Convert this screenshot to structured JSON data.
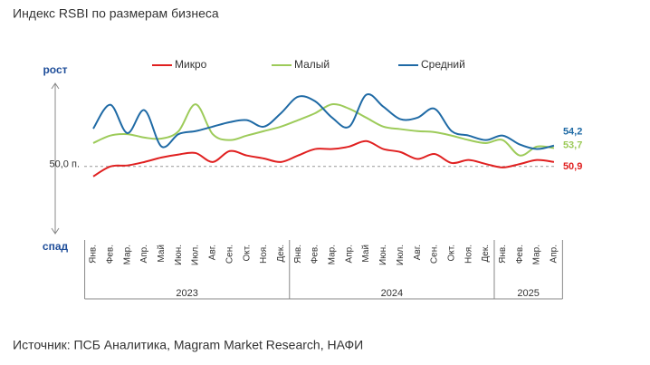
{
  "chart_data": {
    "type": "line",
    "title": "Индекс RSBI по размерам бизнеса",
    "source": "Источник: ПСБ Аналитика, Magram Market Research, НАФИ",
    "y_up_label": "рост",
    "y_down_label": "спад",
    "reference": {
      "value": 50,
      "label": "50,0 п."
    },
    "ylim": [
      36.5,
      66.7
    ],
    "categories": [
      "Янв.",
      "Фев.",
      "Мар.",
      "Апр.",
      "Май",
      "Июн.",
      "Июл.",
      "Авг.",
      "Сен.",
      "Окт.",
      "Ноя.",
      "Дек.",
      "Янв.",
      "Фев.",
      "Мар.",
      "Апр.",
      "Май",
      "Июн.",
      "Июл.",
      "Авг.",
      "Сен.",
      "Окт.",
      "Ноя.",
      "Дек.",
      "Янв.",
      "Фев.",
      "Мар.",
      "Апр."
    ],
    "years": [
      {
        "label": "2023",
        "span": 12
      },
      {
        "label": "2024",
        "span": 12
      },
      {
        "label": "2025",
        "span": 4
      }
    ],
    "series": [
      {
        "name": "Микро",
        "color": "#e02020",
        "values": [
          48.0,
          50.0,
          50.2,
          50.9,
          51.8,
          52.4,
          52.7,
          50.9,
          53.1,
          52.2,
          51.6,
          50.9,
          52.2,
          53.5,
          53.5,
          54.0,
          55.1,
          53.5,
          52.9,
          51.5,
          52.5,
          50.7,
          51.3,
          50.5,
          49.8,
          50.5,
          51.3,
          50.9
        ],
        "value_labels": [
          null,
          null,
          null,
          null,
          null,
          null,
          null,
          null,
          null,
          null,
          null,
          null,
          null,
          null,
          null,
          null,
          null,
          null,
          null,
          null,
          null,
          null,
          null,
          null,
          null,
          null,
          null,
          "50,9"
        ]
      },
      {
        "name": "Малый",
        "color": "#9dcb5a",
        "values": [
          54.7,
          56.2,
          56.5,
          55.8,
          55.6,
          57.1,
          62.5,
          56.5,
          55.3,
          56.2,
          57.1,
          58.0,
          59.3,
          60.7,
          62.5,
          61.6,
          59.8,
          58.0,
          57.5,
          57.1,
          56.9,
          56.2,
          55.3,
          54.7,
          55.3,
          52.2,
          54.0,
          53.7
        ],
        "value_labels": [
          null,
          null,
          null,
          null,
          null,
          null,
          null,
          null,
          null,
          null,
          null,
          null,
          null,
          null,
          null,
          null,
          null,
          null,
          null,
          null,
          null,
          null,
          null,
          null,
          null,
          null,
          null,
          "53,7"
        ]
      },
      {
        "name": "Средний",
        "color": "#1f6aa5",
        "values": [
          57.6,
          62.4,
          56.7,
          61.3,
          54.0,
          56.5,
          57.1,
          58.0,
          58.9,
          59.3,
          58.0,
          60.7,
          64.0,
          63.1,
          59.8,
          58.0,
          64.4,
          62.0,
          59.5,
          59.8,
          61.6,
          57.1,
          56.2,
          55.3,
          56.2,
          54.4,
          53.5,
          54.2
        ],
        "value_labels": [
          null,
          null,
          null,
          null,
          null,
          null,
          null,
          null,
          null,
          null,
          null,
          null,
          null,
          null,
          null,
          null,
          null,
          null,
          null,
          null,
          null,
          null,
          null,
          null,
          null,
          null,
          null,
          "54,2"
        ]
      }
    ]
  }
}
